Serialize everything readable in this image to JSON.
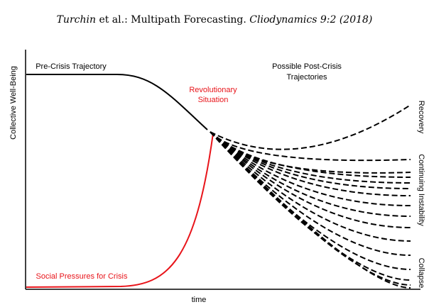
{
  "header": {
    "author": "Turchin",
    "middle": " et al.: Multipath Forecasting. ",
    "journal": "Cliodynamics 9:2 (2018)"
  },
  "axes": {
    "y_label": "Collective Well-Being",
    "x_label": "time"
  },
  "labels": {
    "pre_crisis": "Pre-Crisis Trajectory",
    "revolutionary": [
      "Revolutionary",
      "Situation"
    ],
    "post_crisis": [
      "Possible Post-Crisis",
      "Trajectories"
    ],
    "social_pressures": "Social Pressures for Crisis"
  },
  "outcomes": [
    "Recovery",
    "Continuing Instability",
    "Collapse"
  ]
}
